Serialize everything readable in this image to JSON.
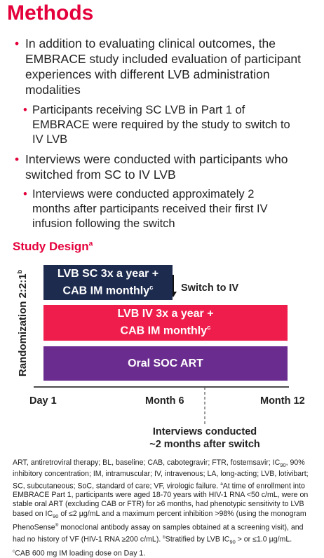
{
  "header": {
    "title": "Methods"
  },
  "bullets": [
    {
      "text": "In addition to evaluating clinical outcomes, the EMBRACE study included evaluation of participant experiences with different LVB administration modalities",
      "sub": [
        "Participants receiving SC LVB in Part 1 of EMBRACE were required by the study to switch to IV LVB"
      ]
    },
    {
      "text": "Interviews were conducted with participants who switched from SC to IV LVB",
      "sub": [
        "Interviews were conducted approximately 2 months after participants received their first IV infusion following the switch"
      ]
    }
  ],
  "study_design": {
    "heading": "Study Design",
    "heading_sup": "a",
    "y_label": "Randomization 2:2:1",
    "y_label_sup": "b",
    "arms": [
      {
        "lines": [
          "LVB SC 3x a year +",
          "CAB IM monthly"
        ],
        "sup": "c"
      },
      {
        "lines": [
          "LVB IV 3x a year +",
          "CAB IM monthly"
        ],
        "sup": "c"
      },
      {
        "lines": [
          "Oral SOC ART"
        ]
      }
    ],
    "switch_label": "Switch to IV",
    "timepoints": [
      "Day 1",
      "Month 6",
      "Month 12"
    ],
    "interview_note": [
      "Interviews conducted",
      "~2 months after switch"
    ]
  },
  "footnote": {
    "parts": [
      "ART, antiretroviral therapy; BL, baseline; CAB, cabotegravir; FTR, fostemsavir; IC",
      "90",
      ", 90% inhibitory concentration; IM, intramuscular; IV, intravenous; LA, long-acting; LVB, lotivibart; SC, subcutaneous; SoC, standard of care; VF, virologic failure. ",
      "a",
      "At time of enrollment into EMBRACE Part 1, participants were aged 18-70 years with HIV-1 RNA <50 c/mL, were on stable oral ART (excluding CAB or FTR) for ≥6 months, had phenotypic sensitivity to LVB based on IC",
      "90",
      " of ≤2 µg/mL and a maximum percent inhibition >98% (using the monogram PhenoSense",
      "®",
      " monoclonal antibody assay on samples obtained at a screening visit), and had no history of VF (HIV-1 RNA ≥200 c/mL). ",
      "b",
      "Stratified by LVB IC",
      "90",
      " > or ≤1.0 µg/mL. ",
      "c",
      "CAB 600 mg IM loading dose on Day 1."
    ]
  }
}
